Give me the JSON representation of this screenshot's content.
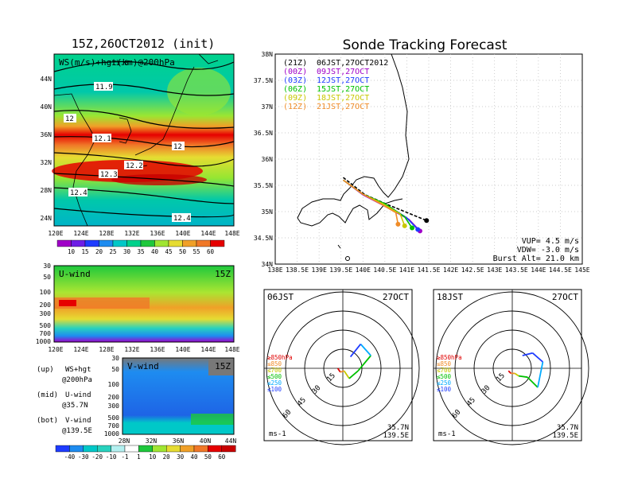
{
  "left_panel": {
    "title": "15Z,26OCT2012 (init)",
    "map_label": "WS(m/s)+hgt(km)@200hPa",
    "lat_ticks": [
      "44N",
      "40N",
      "36N",
      "32N",
      "28N",
      "24N"
    ],
    "lon_ticks": [
      "120E",
      "124E",
      "128E",
      "132E",
      "136E",
      "140E",
      "144E",
      "148E"
    ],
    "contour_labels": [
      "11.8",
      "11.9",
      "12",
      "12.1",
      "12",
      "12.2",
      "12.3",
      "12.4",
      "12.4"
    ],
    "ws_colorbar": [
      "10",
      "15",
      "20",
      "25",
      "30",
      "35",
      "40",
      "45",
      "50",
      "55",
      "60"
    ],
    "uwind_label": "U-wind",
    "uwind_time": "15Z",
    "vwind_label": "V-wind",
    "vwind_time": "15Z",
    "p_ticks": [
      "30",
      "50",
      "100",
      "200",
      "300",
      "500",
      "700",
      "1000"
    ],
    "v_lat_ticks": [
      "28N",
      "32N",
      "36N",
      "40N",
      "44N"
    ],
    "legend": [
      {
        "key": "(up)",
        "text": "WS+hgt",
        "sub": "@200hPa"
      },
      {
        "key": "(mid)",
        "text": "U-wind",
        "sub": "@35.7N"
      },
      {
        "key": "(bot)",
        "text": "V-wind",
        "sub": "@139.5E"
      }
    ],
    "wind_colorbar": [
      "-40",
      "-30",
      "-20",
      "-10",
      "-1",
      "1",
      "10",
      "20",
      "30",
      "40",
      "50",
      "60"
    ]
  },
  "forecast": {
    "title": "Sonde Tracking Forecast",
    "lat_ticks": [
      "38N",
      "37.5N",
      "37N",
      "36.5N",
      "36N",
      "35.5N",
      "35N",
      "34.5N",
      "34N"
    ],
    "lon_ticks": [
      "138E",
      "138.5E",
      "139E",
      "139.5E",
      "140E",
      "140.5E",
      "141E",
      "141.5E",
      "142E",
      "142.5E",
      "143E",
      "143.5E",
      "144E",
      "144.5E",
      "145E"
    ],
    "launches": [
      {
        "utc": "(21Z)",
        "jst": "06JST,27OCT2012",
        "color": "#000000"
      },
      {
        "utc": "(00Z)",
        "jst": "09JST,27OCT",
        "color": "#a000c8"
      },
      {
        "utc": "(03Z)",
        "jst": "12JST,27OCT",
        "color": "#1e3cff"
      },
      {
        "utc": "(06Z)",
        "jst": "15JST,27OCT",
        "color": "#00c000"
      },
      {
        "utc": "(09Z)",
        "jst": "18JST,27OCT",
        "color": "#c8c800"
      },
      {
        "utc": "(12Z)",
        "jst": "21JST,27OCT",
        "color": "#f08c28"
      }
    ],
    "info": [
      "VUP= 4.5 m/s",
      "VDW= -3.0 m/s",
      "Burst Alt= 21.0 km"
    ]
  },
  "hodographs": [
    {
      "time": "06JST",
      "date": "27OCT",
      "lat": "35.7N",
      "lon": "139.5E",
      "unit": "ms-1",
      "rings": [
        "15",
        "30",
        "45",
        "60"
      ],
      "levels": [
        {
          "t": "≥850hPa",
          "c": "#e00000"
        },
        {
          "t": "≤850",
          "c": "#f08c28"
        },
        {
          "t": "≤700",
          "c": "#c8c800"
        },
        {
          "t": "≤500",
          "c": "#00c000"
        },
        {
          "t": "≤250",
          "c": "#00aaff"
        },
        {
          "t": "≤100",
          "c": "#1e3cff"
        }
      ]
    },
    {
      "time": "18JST",
      "date": "27OCT",
      "lat": "35.7N",
      "lon": "139.5E",
      "unit": "ms-1",
      "rings": [
        "15",
        "30",
        "45",
        "60"
      ],
      "levels": [
        {
          "t": "≥850hPa",
          "c": "#e00000"
        },
        {
          "t": "≤850",
          "c": "#f08c28"
        },
        {
          "t": "≤700",
          "c": "#c8c800"
        },
        {
          "t": "≤500",
          "c": "#00c000"
        },
        {
          "t": "≤250",
          "c": "#00aaff"
        },
        {
          "t": "≤100",
          "c": "#1e3cff"
        }
      ]
    }
  ],
  "chart_data": [
    {
      "type": "heatmap",
      "title": "15Z,26OCT2012 (init)",
      "label": "WS(m/s)+hgt(km)@200hPa",
      "x_range": [
        "120E",
        "148E"
      ],
      "y_range": [
        "24N",
        "44N"
      ],
      "colorbar": [
        10,
        15,
        20,
        25,
        30,
        35,
        40,
        45,
        50,
        55,
        60
      ],
      "contour_labels": [
        11.8,
        11.9,
        12,
        12.1,
        12,
        12.2,
        12.3,
        12.4,
        12.4
      ]
    },
    {
      "type": "heatmap",
      "label": "U-wind",
      "time": "15Z",
      "x_range": [
        "120E",
        "148E"
      ],
      "y_levels_hPa": [
        30,
        50,
        100,
        200,
        300,
        500,
        700,
        1000
      ]
    },
    {
      "type": "heatmap",
      "label": "V-wind",
      "time": "15Z",
      "x_range": [
        "28N",
        "44N"
      ],
      "y_levels_hPa": [
        30,
        50,
        100,
        200,
        300,
        500,
        700,
        1000
      ],
      "colorbar": [
        -40,
        -30,
        -20,
        -10,
        -1,
        1,
        10,
        20,
        30,
        40,
        50,
        60
      ]
    },
    {
      "type": "line",
      "title": "Sonde Tracking Forecast",
      "xlim": [
        138,
        145
      ],
      "ylim": [
        34,
        38
      ],
      "series": [
        {
          "name": "(21Z) 06JST,27OCT2012",
          "points": [
            [
              139.55,
              35.65
            ],
            [
              140.05,
              35.32
            ],
            [
              140.6,
              35.12
            ],
            [
              141.1,
              34.95
            ],
            [
              141.45,
              34.83
            ]
          ]
        },
        {
          "name": "(00Z) 09JST,27OCT",
          "points": [
            [
              139.55,
              35.6
            ],
            [
              140.0,
              35.32
            ],
            [
              140.55,
              35.08
            ],
            [
              141.05,
              34.85
            ],
            [
              141.3,
              34.63
            ]
          ]
        },
        {
          "name": "(03Z) 12JST,27OCT",
          "points": [
            [
              139.55,
              35.6
            ],
            [
              140.0,
              35.33
            ],
            [
              140.55,
              35.12
            ],
            [
              141.0,
              34.88
            ],
            [
              141.25,
              34.66
            ]
          ]
        },
        {
          "name": "(06Z) 15JST,27OCT",
          "points": [
            [
              139.55,
              35.6
            ],
            [
              140.0,
              35.33
            ],
            [
              140.5,
              35.15
            ],
            [
              140.95,
              34.9
            ],
            [
              141.12,
              34.69
            ]
          ]
        },
        {
          "name": "(09Z) 18JST,27OCT",
          "points": [
            [
              139.55,
              35.6
            ],
            [
              140.0,
              35.33
            ],
            [
              140.45,
              35.15
            ],
            [
              140.85,
              34.95
            ],
            [
              140.95,
              34.73
            ]
          ]
        },
        {
          "name": "(12Z) 21JST,27OCT",
          "points": [
            [
              139.55,
              35.6
            ],
            [
              140.0,
              35.33
            ],
            [
              140.4,
              35.15
            ],
            [
              140.75,
              34.98
            ],
            [
              140.8,
              34.76
            ]
          ]
        }
      ],
      "info": [
        "VUP= 4.5 m/s",
        "VDW= -3.0 m/s",
        "Burst Alt= 21.0 km"
      ]
    },
    {
      "type": "scatter",
      "title": "06JST 27OCT hodograph",
      "rings": [
        15,
        30,
        45,
        60
      ],
      "unit": "ms-1",
      "points": [
        [
          -4,
          0
        ],
        [
          -2,
          -3
        ],
        [
          1,
          -2
        ],
        [
          5,
          -8
        ],
        [
          12,
          -2
        ],
        [
          22,
          10
        ],
        [
          14,
          19
        ],
        [
          6,
          9
        ]
      ]
    },
    {
      "type": "scatter",
      "title": "18JST 27OCT hodograph",
      "rings": [
        15,
        30,
        45,
        60
      ],
      "unit": "ms-1",
      "points": [
        [
          -3,
          -2
        ],
        [
          -1,
          -4
        ],
        [
          2,
          -4
        ],
        [
          5,
          -6
        ],
        [
          12,
          -7
        ],
        [
          20,
          -15
        ],
        [
          24,
          5
        ],
        [
          16,
          12
        ],
        [
          8,
          10
        ]
      ]
    }
  ]
}
